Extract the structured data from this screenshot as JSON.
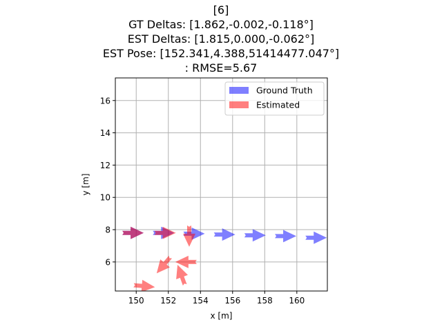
{
  "title_lines": [
    "[6]",
    "GT Deltas: [1.862,-0.002,-0.118°]",
    "EST Deltas: [1.815,0.000,-0.062°]",
    "EST Pose: [152.341,4.388,51414477.047°]",
    ": RMSE=5.67"
  ],
  "colors": {
    "ground_truth": "#0000ff",
    "estimated": "#ff0000",
    "grid": "#b0b0b0"
  },
  "chart_data": {
    "type": "scatter",
    "marker": "arrow",
    "xlabel": "x [m]",
    "ylabel": "y [m]",
    "xlim": [
      148.7,
      161.9
    ],
    "ylim": [
      4.2,
      17.4
    ],
    "x_ticks": [
      150,
      152,
      154,
      156,
      158,
      160
    ],
    "y_ticks": [
      6,
      8,
      10,
      12,
      14,
      16
    ],
    "grid": true,
    "legend_position": "top-right",
    "series": [
      {
        "name": "Ground Truth",
        "color": "#0000ff",
        "alpha": 0.5,
        "points": [
          {
            "x": 149.8,
            "y": 7.8,
            "heading_deg": 0
          },
          {
            "x": 151.7,
            "y": 7.8,
            "heading_deg": 0
          },
          {
            "x": 153.6,
            "y": 7.75,
            "heading_deg": 0
          },
          {
            "x": 155.5,
            "y": 7.7,
            "heading_deg": 0
          },
          {
            "x": 157.4,
            "y": 7.65,
            "heading_deg": 0
          },
          {
            "x": 159.3,
            "y": 7.6,
            "heading_deg": 0
          },
          {
            "x": 161.2,
            "y": 7.5,
            "heading_deg": 0
          }
        ]
      },
      {
        "name": "Estimated",
        "color": "#ff0000",
        "alpha": 0.5,
        "points": [
          {
            "x": 149.8,
            "y": 7.8,
            "heading_deg": 0
          },
          {
            "x": 151.8,
            "y": 7.8,
            "heading_deg": 0
          },
          {
            "x": 153.3,
            "y": 7.6,
            "heading_deg": -90
          },
          {
            "x": 153.1,
            "y": 6.0,
            "heading_deg": 180
          },
          {
            "x": 151.7,
            "y": 5.8,
            "heading_deg": -130
          },
          {
            "x": 152.8,
            "y": 5.2,
            "heading_deg": 110
          },
          {
            "x": 150.5,
            "y": 4.5,
            "heading_deg": -5
          }
        ]
      }
    ]
  }
}
